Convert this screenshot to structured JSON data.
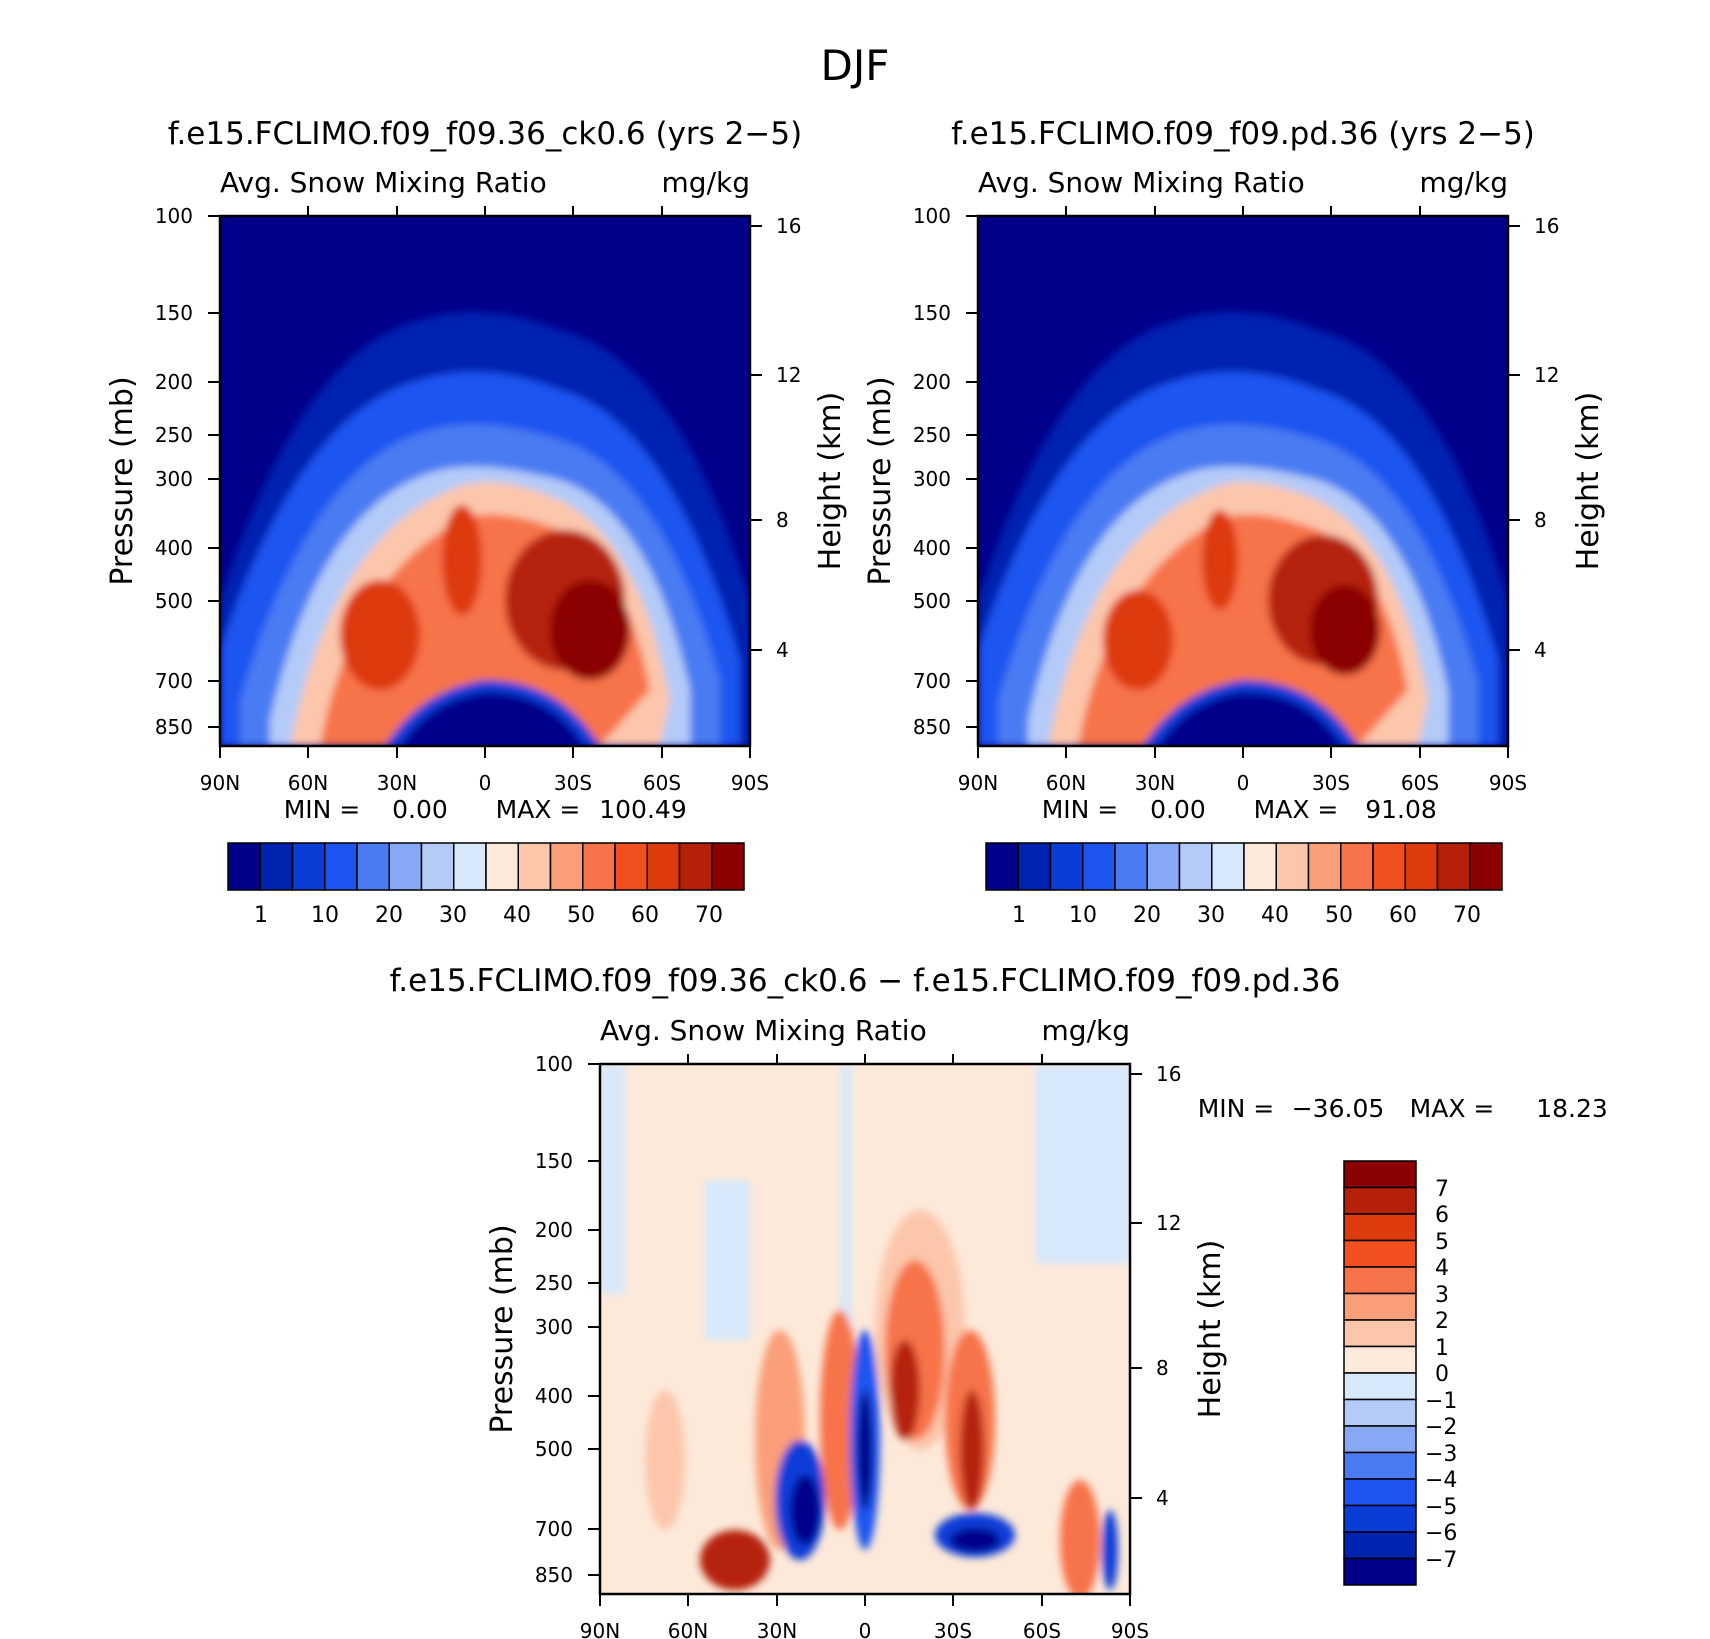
{
  "figure": {
    "season_title": "DJF"
  },
  "chart_data": [
    {
      "type": "heatmap",
      "title": "f.e15.FCLIMO.f09_f09.36_ck0.6 (yrs 2−5)",
      "variable_label": "Avg. Snow Mixing Ratio",
      "units": "mg/kg",
      "ylabel": "Pressure (mb)",
      "ylabel_right": "Height (km)",
      "xlabel": "",
      "x_ticks": [
        "90N",
        "60N",
        "30N",
        "0",
        "30S",
        "60S",
        "90S"
      ],
      "y_ticks": [
        100,
        150,
        200,
        250,
        300,
        400,
        500,
        700,
        850
      ],
      "y_right_ticks": [
        16,
        12,
        8,
        4
      ],
      "y_scale": "log",
      "min_label": "MIN =",
      "min_value": "0.00",
      "max_label": "MAX =",
      "max_value": "100.49",
      "colorbar": {
        "orientation": "horizontal",
        "tick_labels": [
          "1",
          "10",
          "20",
          "30",
          "40",
          "50",
          "60",
          "70"
        ],
        "colors": [
          "#00008b",
          "#0022b0",
          "#0a3cd8",
          "#1e55f0",
          "#4a7bf2",
          "#86a8f5",
          "#b4cbf8",
          "#d8e8fb",
          "#fde9d9",
          "#fcc6ab",
          "#fa9f79",
          "#f7734a",
          "#f2501f",
          "#dd3a0d",
          "#b52008",
          "#8b0000"
        ]
      }
    },
    {
      "type": "heatmap",
      "title": "f.e15.FCLIMO.f09_f09.pd.36 (yrs 2−5)",
      "variable_label": "Avg. Snow Mixing Ratio",
      "units": "mg/kg",
      "ylabel": "Pressure (mb)",
      "ylabel_right": "Height (km)",
      "xlabel": "",
      "x_ticks": [
        "90N",
        "60N",
        "30N",
        "0",
        "30S",
        "60S",
        "90S"
      ],
      "y_ticks": [
        100,
        150,
        200,
        250,
        300,
        400,
        500,
        700,
        850
      ],
      "y_right_ticks": [
        16,
        12,
        8,
        4
      ],
      "y_scale": "log",
      "min_label": "MIN =",
      "min_value": "0.00",
      "max_label": "MAX =",
      "max_value": "91.08",
      "colorbar": {
        "orientation": "horizontal",
        "tick_labels": [
          "1",
          "10",
          "20",
          "30",
          "40",
          "50",
          "60",
          "70"
        ],
        "colors": [
          "#00008b",
          "#0022b0",
          "#0a3cd8",
          "#1e55f0",
          "#4a7bf2",
          "#86a8f5",
          "#b4cbf8",
          "#d8e8fb",
          "#fde9d9",
          "#fcc6ab",
          "#fa9f79",
          "#f7734a",
          "#f2501f",
          "#dd3a0d",
          "#b52008",
          "#8b0000"
        ]
      }
    },
    {
      "type": "heatmap",
      "title": "f.e15.FCLIMO.f09_f09.36_ck0.6 − f.e15.FCLIMO.f09_f09.pd.36",
      "variable_label": "Avg. Snow Mixing Ratio",
      "units": "mg/kg",
      "ylabel": "Pressure (mb)",
      "ylabel_right": "Height (km)",
      "xlabel": "",
      "x_ticks": [
        "90N",
        "60N",
        "30N",
        "0",
        "30S",
        "60S",
        "90S"
      ],
      "y_ticks": [
        100,
        150,
        200,
        250,
        300,
        400,
        500,
        700,
        850
      ],
      "y_right_ticks": [
        16,
        12,
        8,
        4
      ],
      "y_scale": "log",
      "min_label": "MIN =",
      "min_value": "−36.05",
      "max_label": "MAX =",
      "max_value": "18.23",
      "colorbar": {
        "orientation": "vertical",
        "tick_labels": [
          "7",
          "6",
          "5",
          "4",
          "3",
          "2",
          "1",
          "0",
          "−1",
          "−2",
          "−3",
          "−4",
          "−5",
          "−6",
          "−7"
        ],
        "colors": [
          "#8b0000",
          "#b52008",
          "#dd3a0d",
          "#f2501f",
          "#f7734a",
          "#fa9f79",
          "#fcc6ab",
          "#fde9d9",
          "#d8e8fb",
          "#b4cbf8",
          "#86a8f5",
          "#4a7bf2",
          "#1e55f0",
          "#0a3cd8",
          "#0022b0",
          "#00008b"
        ]
      }
    }
  ]
}
